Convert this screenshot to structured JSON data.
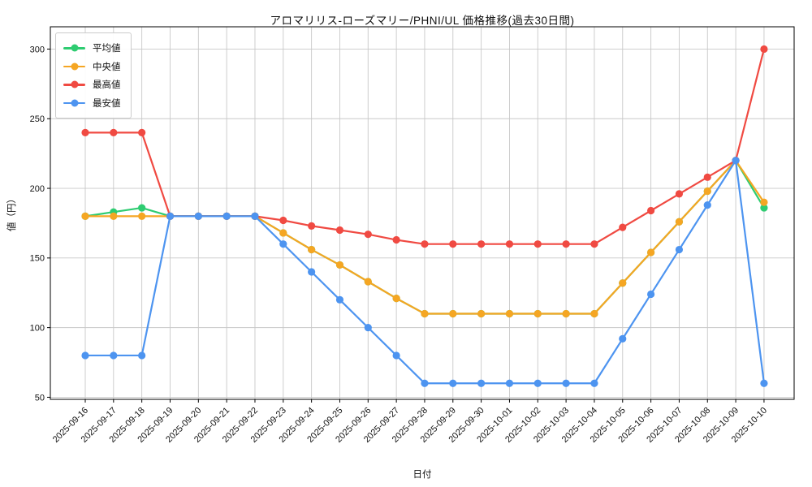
{
  "chart_data": {
    "type": "line",
    "title": "アロマリリス-ローズマリー/PHNI/UL 価格推移(過去30日間)",
    "xlabel": "日付",
    "ylabel": "値（円）",
    "x": [
      "2025-09-16",
      "2025-09-17",
      "2025-09-18",
      "2025-09-19",
      "2025-09-20",
      "2025-09-21",
      "2025-09-22",
      "2025-09-23",
      "2025-09-24",
      "2025-09-25",
      "2025-09-26",
      "2025-09-27",
      "2025-09-28",
      "2025-09-29",
      "2025-09-30",
      "2025-10-01",
      "2025-10-02",
      "2025-10-03",
      "2025-10-04",
      "2025-10-05",
      "2025-10-06",
      "2025-10-07",
      "2025-10-08",
      "2025-10-09",
      "2025-10-10"
    ],
    "series": [
      {
        "name": "平均値",
        "color": "#2ecc71",
        "values": [
          180,
          183,
          186,
          180,
          180,
          180,
          180,
          168,
          156,
          145,
          133,
          121,
          110,
          110,
          110,
          110,
          110,
          110,
          110,
          132,
          154,
          176,
          198,
          220,
          186
        ]
      },
      {
        "name": "中央値",
        "color": "#f5a623",
        "values": [
          180,
          180,
          180,
          180,
          180,
          180,
          180,
          168,
          156,
          145,
          133,
          121,
          110,
          110,
          110,
          110,
          110,
          110,
          110,
          132,
          154,
          176,
          198,
          220,
          190
        ]
      },
      {
        "name": "最高値",
        "color": "#f04a42",
        "values": [
          240,
          240,
          240,
          180,
          180,
          180,
          180,
          177,
          173,
          170,
          167,
          163,
          160,
          160,
          160,
          160,
          160,
          160,
          160,
          172,
          184,
          196,
          208,
          220,
          300
        ]
      },
      {
        "name": "最安値",
        "color": "#4d94f0",
        "values": [
          80,
          80,
          80,
          180,
          180,
          180,
          180,
          160,
          140,
          120,
          100,
          80,
          60,
          60,
          60,
          60,
          60,
          60,
          60,
          92,
          124,
          156,
          188,
          220,
          60
        ]
      }
    ],
    "yticks": [
      50,
      100,
      150,
      200,
      250,
      300
    ],
    "ylim": [
      48.5,
      316
    ],
    "grid": true,
    "grid_color": "#c8c8c8",
    "axis_color": "#000000",
    "legend_position": "upper-left"
  }
}
